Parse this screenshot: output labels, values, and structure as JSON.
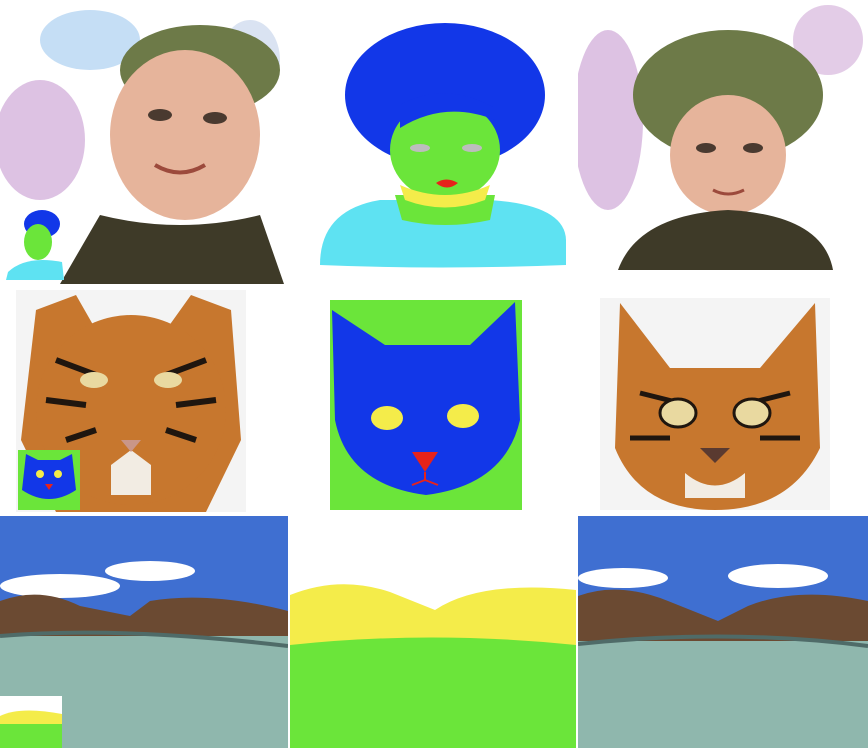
{
  "grid": {
    "rows": [
      {
        "subject": "portrait",
        "cells": [
          {
            "kind": "style-source",
            "description_icon": "watercolor-boy-portrait"
          },
          {
            "kind": "semantic-mask",
            "description_icon": "child-segmentation-map"
          },
          {
            "kind": "result",
            "description_icon": "watercolor-curly-child-portrait"
          }
        ]
      },
      {
        "subject": "animal",
        "cells": [
          {
            "kind": "style-source",
            "description_icon": "tiger-face-photo"
          },
          {
            "kind": "semantic-mask",
            "description_icon": "cat-segmentation-map"
          },
          {
            "kind": "result",
            "description_icon": "tiger-textured-cat-face"
          }
        ]
      },
      {
        "subject": "landscape",
        "cells": [
          {
            "kind": "style-source",
            "description_icon": "rocky-shore-lake-photo"
          },
          {
            "kind": "semantic-mask",
            "description_icon": "landscape-segmentation-map"
          },
          {
            "kind": "result",
            "description_icon": "synthesized-rocky-shore-lake"
          }
        ]
      }
    ]
  },
  "palette": {
    "mask_blue": "#1237e8",
    "mask_green": "#6be53a",
    "mask_yellow": "#f4ec4a",
    "mask_cyan": "#5ee2f2",
    "mask_red": "#e6231b",
    "mask_gray": "#bdbdbd",
    "sky_blue": "#3f6fd1",
    "rock_brown": "#6b4a32",
    "water_teal": "#8fb7ad",
    "tiger_orange": "#c7772e"
  }
}
